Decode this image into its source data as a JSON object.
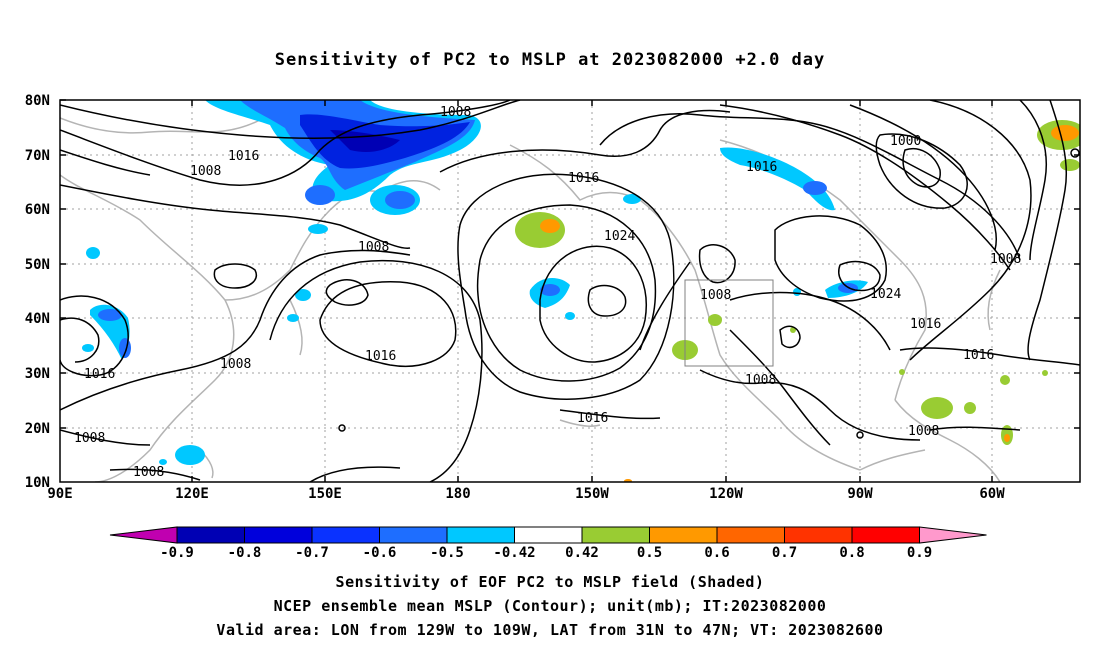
{
  "title": "Sensitivity of PC2 to MSLP at 2023082000 +2.0 day",
  "lat_ticks": [
    "80N",
    "70N",
    "60N",
    "50N",
    "40N",
    "30N",
    "20N",
    "10N"
  ],
  "lon_ticks": [
    "90E",
    "120E",
    "150E",
    "180",
    "150W",
    "120W",
    "90W",
    "60W"
  ],
  "contour_labels": [
    {
      "text": "1008"
    },
    {
      "text": "1016"
    },
    {
      "text": "1008"
    },
    {
      "text": "1008"
    },
    {
      "text": "1016"
    },
    {
      "text": "1024"
    },
    {
      "text": "1016"
    },
    {
      "text": "1000"
    },
    {
      "text": "1008"
    },
    {
      "text": "1024"
    },
    {
      "text": "1016"
    },
    {
      "text": "1016"
    },
    {
      "text": "1008"
    },
    {
      "text": "1008"
    },
    {
      "text": "1008"
    },
    {
      "text": "1016"
    },
    {
      "text": "1016"
    },
    {
      "text": "1008"
    },
    {
      "text": "1008"
    },
    {
      "text": "1008"
    }
  ],
  "colorbar": {
    "labels": [
      "-0.9",
      "-0.8",
      "-0.7",
      "-0.6",
      "-0.5",
      "-0.42",
      "0.42",
      "0.5",
      "0.6",
      "0.7",
      "0.8",
      "0.9"
    ],
    "colors": [
      "#c000b0",
      "#0000b4",
      "#0000dc",
      "#0a32ff",
      "#1e6eff",
      "#00c8ff",
      "#ffffff",
      "#99cc33",
      "#ff9900",
      "#ff6600",
      "#ff3300",
      "#ff0000",
      "#ff99cc"
    ]
  },
  "shading_colors": {
    "blue_dark": "#0022e0",
    "blue_mid": "#1e6eff",
    "blue_light": "#00c8ff",
    "green": "#99cc33",
    "orange": "#ff9900"
  },
  "captions": [
    "Sensitivity of EOF PC2 to MSLP field (Shaded)",
    "NCEP ensemble mean MSLP (Contour); unit(mb); IT:2023082000",
    "Valid area: LON from 129W to 109W, LAT from 31N to 47N; VT: 2023082600"
  ]
}
